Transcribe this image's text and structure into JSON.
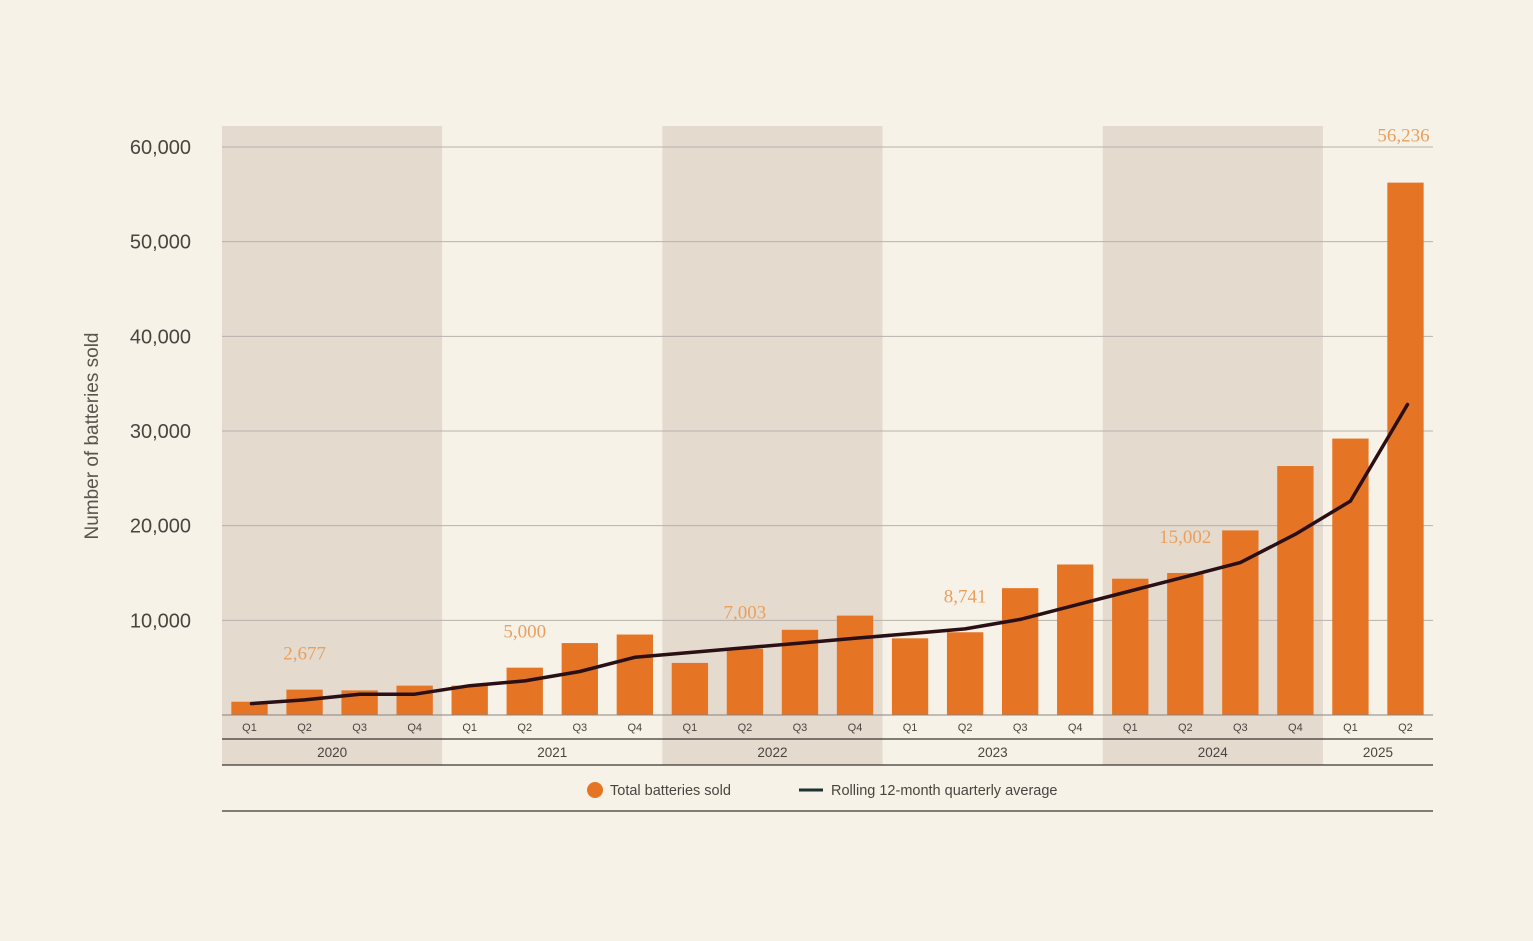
{
  "chart_data": {
    "type": "bar",
    "ylabel": "Number of batteries sold",
    "ylim": [
      0,
      60000
    ],
    "yticks": [
      "10,000",
      "20,000",
      "30,000",
      "40,000",
      "50,000",
      "60,000"
    ],
    "ytick_values": [
      10000,
      20000,
      30000,
      40000,
      50000,
      60000
    ],
    "grid": true,
    "categories": [
      "Q1",
      "Q2",
      "Q3",
      "Q4",
      "Q1",
      "Q2",
      "Q3",
      "Q4",
      "Q1",
      "Q2",
      "Q3",
      "Q4",
      "Q1",
      "Q2",
      "Q3",
      "Q4",
      "Q1",
      "Q2",
      "Q3",
      "Q4",
      "Q1",
      "Q2"
    ],
    "years": [
      {
        "label": "2020",
        "count": 4,
        "shaded": true
      },
      {
        "label": "2021",
        "count": 4,
        "shaded": false
      },
      {
        "label": "2022",
        "count": 4,
        "shaded": true
      },
      {
        "label": "2023",
        "count": 4,
        "shaded": false
      },
      {
        "label": "2024",
        "count": 4,
        "shaded": true
      },
      {
        "label": "2025",
        "count": 2,
        "shaded": false
      }
    ],
    "series": [
      {
        "name": "Total batteries sold",
        "kind": "bar",
        "color": "#e57525",
        "values": [
          1400,
          2677,
          2600,
          3100,
          3100,
          5000,
          7600,
          8500,
          5500,
          7003,
          9000,
          10500,
          8100,
          8741,
          13400,
          15900,
          14400,
          15002,
          19500,
          26300,
          29200,
          56236
        ]
      },
      {
        "name": "Rolling 12-month quarterly average",
        "kind": "line",
        "color": "#2a0f14",
        "values": [
          1200,
          1600,
          2200,
          2200,
          3100,
          3600,
          4600,
          6100,
          6600,
          7100,
          7600,
          8100,
          8600,
          9100,
          10100,
          11600,
          13100,
          14600,
          16100,
          19100,
          22600,
          32800
        ]
      }
    ],
    "annotations": [
      {
        "index": 1,
        "text": "2,677"
      },
      {
        "index": 5,
        "text": "5,000"
      },
      {
        "index": 9,
        "text": "7,003"
      },
      {
        "index": 13,
        "text": "8,741"
      },
      {
        "index": 17,
        "text": "15,002"
      },
      {
        "index": 21,
        "text": "56,236"
      }
    ],
    "legend": {
      "position": "bottom-center",
      "items": [
        {
          "label": "Total batteries sold",
          "marker": "circle",
          "color": "#e57525"
        },
        {
          "label": "Rolling 12-month quarterly average",
          "marker": "line",
          "color": "#1c3330"
        }
      ]
    },
    "colors": {
      "background": "#f7f2e8",
      "year_band": "#e4dace",
      "grid": "#b8b2ad",
      "annotation": "#e8a060"
    }
  }
}
